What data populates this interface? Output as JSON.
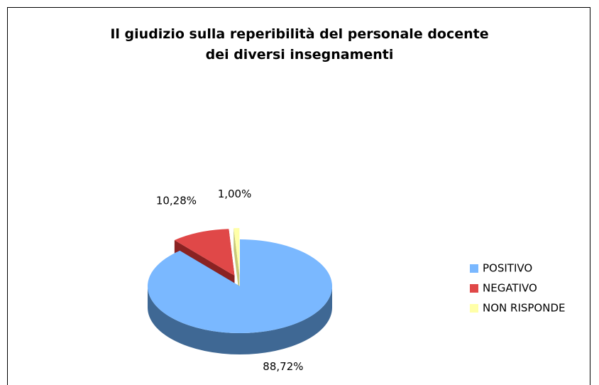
{
  "chart_data": {
    "type": "pie3d",
    "title": "Il giudizio sulla reperibilità del personale docente\ndei diversi insegnamenti",
    "categories": [
      "POSITIVO",
      "NEGATIVO",
      "NON RISPONDE"
    ],
    "values": [
      88.72,
      10.28,
      1.0
    ],
    "value_labels": [
      "88,72%",
      "10,28%",
      "1,00%"
    ],
    "colors": [
      "#7ab8ff",
      "#e04848",
      "#ffffa8"
    ],
    "side_colors": [
      "#3f6894",
      "#8a2222",
      "#c8c87a"
    ],
    "exploded": [
      false,
      true,
      true
    ],
    "legend": "right"
  }
}
